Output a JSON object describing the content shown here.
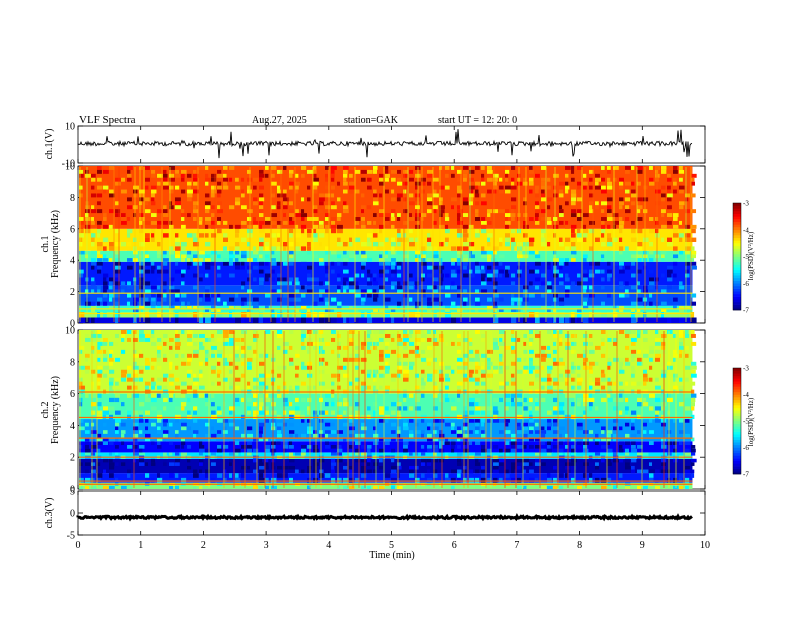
{
  "header": {
    "title": "VLF  Spectra",
    "date": "Aug.27, 2025",
    "station": "station=GAK",
    "start_ut": "start  UT  =    12: 20: 0"
  },
  "chart_data": {
    "type": "heatmap",
    "x_axis": {
      "label": "Time  (min)",
      "range": [
        0,
        10
      ],
      "ticks": [
        0,
        1,
        2,
        3,
        4,
        5,
        6,
        7,
        8,
        9,
        10
      ],
      "data_end": 9.8
    },
    "panels": [
      {
        "id": "ch1-waveform",
        "kind": "line",
        "ylabel": "ch.1(V)",
        "ylim": [
          -10,
          10
        ],
        "yticks": [
          10,
          -10
        ],
        "baseline": 0.5,
        "color": "#000000"
      },
      {
        "id": "ch1-spectrogram",
        "kind": "heatmap",
        "ylabel_top": "ch.1",
        "ylabel": "Frequency  (kHz)",
        "ylim": [
          0,
          10
        ],
        "yticks": [
          0,
          2,
          4,
          6,
          8,
          10
        ],
        "colorbar": {
          "label": "log(PSD)(V²/Hz)",
          "range": [
            -7,
            -3
          ],
          "ticks": [
            -3,
            -4,
            -5,
            -6,
            -7
          ]
        },
        "bands": [
          {
            "from_khz": 0.0,
            "to_khz": 0.35,
            "log_psd": -6.6
          },
          {
            "from_khz": 0.35,
            "to_khz": 0.7,
            "log_psd": -4.9
          },
          {
            "from_khz": 0.7,
            "to_khz": 1.1,
            "log_psd": -5.3
          },
          {
            "from_khz": 1.1,
            "to_khz": 2.4,
            "log_psd": -6.2
          },
          {
            "from_khz": 2.4,
            "to_khz": 3.9,
            "log_psd": -6.4
          },
          {
            "from_khz": 3.9,
            "to_khz": 4.6,
            "log_psd": -5.2
          },
          {
            "from_khz": 4.6,
            "to_khz": 6.0,
            "log_psd": -4.4
          },
          {
            "from_khz": 6.0,
            "to_khz": 10.0,
            "log_psd": -3.8
          }
        ],
        "lines_khz": [
          0.6,
          0.9,
          1.9
        ],
        "line_color": "#ffe600"
      },
      {
        "id": "ch2-spectrogram",
        "kind": "heatmap",
        "ylabel_top": "ch.2",
        "ylabel": "Frequency  (kHz)",
        "ylim": [
          0,
          10
        ],
        "yticks": [
          0,
          2,
          4,
          6,
          8,
          10
        ],
        "colorbar": {
          "label": "log(PSD)(V²/Hz)",
          "range": [
            -7,
            -3
          ],
          "ticks": [
            -3,
            -4,
            -5,
            -6,
            -7
          ]
        },
        "bands": [
          {
            "from_khz": 0.0,
            "to_khz": 0.4,
            "log_psd": -5.0
          },
          {
            "from_khz": 0.4,
            "to_khz": 1.0,
            "log_psd": -6.4
          },
          {
            "from_khz": 1.0,
            "to_khz": 1.9,
            "log_psd": -6.8
          },
          {
            "from_khz": 1.9,
            "to_khz": 2.3,
            "log_psd": -5.6
          },
          {
            "from_khz": 2.3,
            "to_khz": 3.0,
            "log_psd": -6.5
          },
          {
            "from_khz": 3.0,
            "to_khz": 4.4,
            "log_psd": -5.9
          },
          {
            "from_khz": 4.4,
            "to_khz": 6.0,
            "log_psd": -5.2
          },
          {
            "from_khz": 6.0,
            "to_khz": 10.0,
            "log_psd": -4.7
          }
        ],
        "lines_khz": [
          0.3,
          0.5,
          2.0,
          3.2,
          4.5,
          6.1
        ],
        "line_color": "#ff6a00"
      },
      {
        "id": "ch3-waveform",
        "kind": "line",
        "ylabel": "ch.3(V)",
        "ylim": [
          -5,
          5
        ],
        "yticks": [
          5,
          0,
          -5
        ],
        "baseline": -1.0,
        "color": "#000000"
      }
    ]
  }
}
